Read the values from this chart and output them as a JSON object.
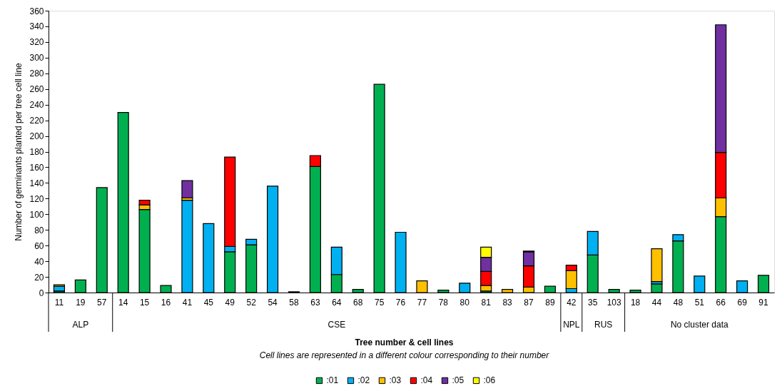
{
  "chart_data": {
    "type": "bar",
    "stacked": true,
    "xlabel": "Tree number & cell lines",
    "ylabel": "Number of germinants planted per tree cell line",
    "annotations": [
      "Cell lines are represented in a different colour corresponding to their number",
      "ALP",
      "CSE",
      "NPL",
      "RUS",
      "No cluster data"
    ],
    "categories": [
      "11",
      "19",
      "57",
      "14",
      "15",
      "16",
      "41",
      "45",
      "49",
      "52",
      "54",
      "58",
      "63",
      "64",
      "68",
      "75",
      "76",
      "77",
      "78",
      "80",
      "81",
      "83",
      "87",
      "89",
      "42",
      "35",
      "103",
      "18",
      "44",
      "48",
      "51",
      "66",
      "69",
      "91"
    ],
    "series": [
      {
        "name": ":01",
        "color": "#00b050",
        "values": [
          2,
          16,
          134,
          230,
          106,
          9,
          null,
          null,
          52,
          61,
          null,
          1,
          161,
          23,
          4,
          266,
          null,
          null,
          3,
          null,
          2,
          null,
          null,
          8,
          null,
          48,
          4,
          3,
          11,
          66,
          null,
          97,
          null,
          22
        ]
      },
      {
        "name": ":02",
        "color": "#00b0f0",
        "values": [
          6,
          null,
          null,
          null,
          null,
          null,
          118,
          88,
          7,
          7,
          136,
          null,
          null,
          35,
          null,
          null,
          77,
          null,
          null,
          12,
          null,
          null,
          null,
          null,
          5,
          30,
          null,
          null,
          3,
          8,
          21,
          null,
          15,
          null
        ]
      },
      {
        "name": ":03",
        "color": "#ffc000",
        "values": [
          2,
          null,
          null,
          null,
          6,
          null,
          3,
          null,
          null,
          null,
          null,
          null,
          null,
          null,
          null,
          null,
          null,
          15,
          null,
          null,
          7,
          4,
          7,
          null,
          23,
          null,
          null,
          null,
          42,
          null,
          null,
          24,
          null,
          null
        ]
      },
      {
        "name": ":04",
        "color": "#ff0000",
        "values": [
          null,
          null,
          null,
          null,
          6,
          null,
          null,
          null,
          114,
          null,
          null,
          null,
          14,
          null,
          null,
          null,
          null,
          null,
          null,
          null,
          18,
          null,
          27,
          null,
          7,
          null,
          null,
          null,
          null,
          null,
          null,
          58,
          null,
          null
        ]
      },
      {
        "name": ":05",
        "color": "#7030a0",
        "values": [
          null,
          null,
          null,
          null,
          null,
          null,
          22,
          null,
          null,
          null,
          null,
          null,
          null,
          null,
          null,
          null,
          null,
          null,
          null,
          null,
          18,
          null,
          18,
          null,
          null,
          null,
          null,
          null,
          null,
          null,
          null,
          163,
          null,
          null
        ]
      },
      {
        "name": ":06",
        "color": "#ffff00",
        "values": [
          null,
          null,
          null,
          null,
          null,
          null,
          null,
          null,
          null,
          null,
          null,
          null,
          null,
          null,
          null,
          null,
          null,
          null,
          null,
          null,
          13,
          null,
          1,
          null,
          null,
          null,
          null,
          null,
          null,
          null,
          null,
          null,
          null,
          null
        ]
      }
    ],
    "ylim": [
      0,
      360
    ],
    "yticks": [
      0,
      20,
      40,
      60,
      80,
      100,
      120,
      140,
      160,
      180,
      200,
      220,
      240,
      260,
      280,
      300,
      320,
      340,
      360
    ],
    "grid": false,
    "legend": "bottom"
  }
}
